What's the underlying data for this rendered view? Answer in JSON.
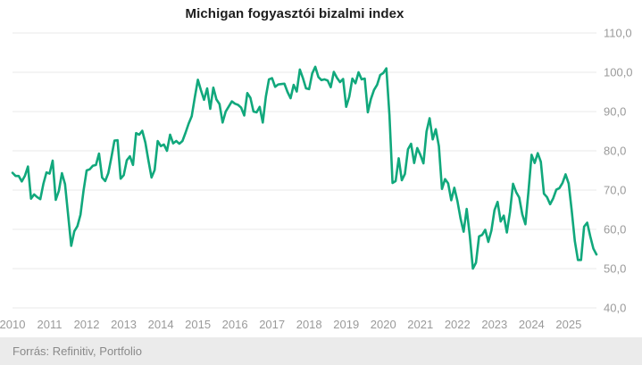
{
  "header": {
    "title": "Michigan fogyasztói bizalmi index"
  },
  "footer": {
    "source_label": "Forrás: Refinitiv, Portfolio"
  },
  "colors": {
    "line": "#11A87C",
    "grid": "#e9e9e9",
    "tick_text": "#9a9a9a",
    "title_text": "#1d1d1d",
    "footer_bg": "#ebebeb"
  },
  "chart_data": {
    "type": "line",
    "title": "Michigan fogyasztói bizalmi index",
    "frequency": "monthly",
    "x_start": "2010-01",
    "x_end": "2025-10",
    "x_tick_labels": [
      "2010",
      "2011",
      "2012",
      "2013",
      "2014",
      "2015",
      "2016",
      "2017",
      "2018",
      "2019",
      "2020",
      "2021",
      "2022",
      "2023",
      "2024",
      "2025"
    ],
    "y_ticks": [
      40,
      50,
      60,
      70,
      80,
      90,
      100,
      110
    ],
    "y_tick_labels": [
      "40,0",
      "50,0",
      "60,0",
      "70,0",
      "80,0",
      "90,0",
      "100,0",
      "110,0"
    ],
    "ylim": [
      40,
      110
    ],
    "grid": "horizontal-only",
    "legend": "none",
    "y_axis_position": "right",
    "values": [
      74.4,
      73.6,
      73.6,
      72.2,
      73.6,
      76.0,
      67.8,
      68.9,
      68.2,
      67.7,
      71.6,
      74.5,
      74.2,
      77.5,
      67.5,
      69.8,
      74.3,
      71.5,
      63.7,
      55.8,
      59.5,
      60.8,
      63.7,
      69.9,
      75.0,
      75.3,
      76.2,
      76.4,
      79.3,
      73.2,
      72.3,
      74.3,
      78.3,
      82.6,
      82.7,
      72.9,
      73.8,
      77.6,
      78.6,
      76.4,
      84.5,
      84.1,
      85.1,
      82.1,
      77.5,
      73.2,
      75.1,
      82.5,
      81.2,
      81.6,
      80.0,
      84.1,
      81.9,
      82.5,
      81.8,
      82.5,
      84.6,
      86.9,
      88.8,
      93.6,
      98.1,
      95.4,
      93.0,
      95.9,
      90.7,
      96.1,
      93.1,
      91.9,
      87.2,
      90.0,
      91.3,
      92.6,
      92.0,
      91.7,
      91.0,
      89.0,
      94.7,
      93.5,
      90.0,
      89.8,
      91.2,
      87.2,
      93.8,
      98.2,
      98.5,
      96.3,
      96.9,
      97.0,
      97.1,
      95.0,
      93.4,
      96.8,
      95.1,
      100.7,
      98.5,
      95.9,
      95.7,
      99.7,
      101.4,
      98.8,
      98.0,
      98.2,
      97.9,
      96.2,
      100.1,
      98.6,
      97.5,
      98.3,
      91.2,
      93.8,
      98.4,
      97.2,
      100.0,
      98.2,
      98.4,
      89.8,
      93.2,
      95.5,
      96.8,
      99.3,
      99.8,
      101.0,
      89.1,
      71.8,
      72.3,
      78.1,
      72.5,
      74.1,
      80.4,
      81.8,
      76.9,
      80.7,
      79.0,
      76.8,
      84.9,
      88.3,
      82.9,
      85.5,
      81.2,
      70.3,
      72.8,
      71.7,
      67.4,
      70.6,
      67.2,
      62.8,
      59.4,
      65.2,
      58.4,
      50.0,
      51.5,
      58.2,
      58.6,
      59.9,
      56.8,
      59.7,
      64.9,
      67.0,
      62.0,
      63.5,
      59.2,
      64.4,
      71.6,
      69.5,
      68.1,
      63.8,
      61.3,
      69.7,
      79.0,
      76.9,
      79.4,
      77.2,
      69.1,
      68.2,
      66.4,
      67.9,
      70.1,
      70.5,
      71.8,
      74.0,
      71.7,
      64.7,
      57.0,
      52.2,
      52.2,
      60.7,
      61.7,
      58.2,
      55.1,
      53.6
    ]
  }
}
